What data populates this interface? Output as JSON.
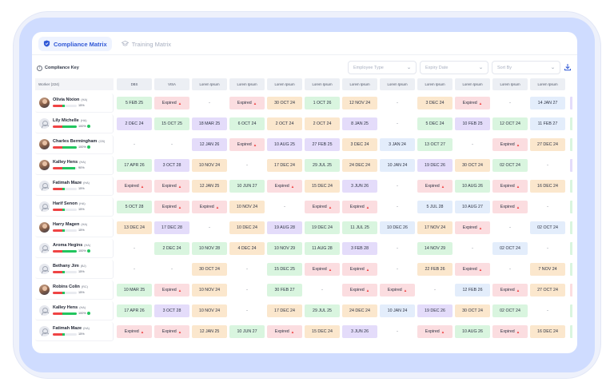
{
  "tabs": [
    {
      "label": "Compliance Matrix",
      "icon": "shield-icon",
      "active": true
    },
    {
      "label": "Training Matrix",
      "icon": "graduation-cap-icon",
      "active": false
    }
  ],
  "toolbar": {
    "compliance_key": "Compliance Key",
    "filters": [
      {
        "placeholder": "Employee Type"
      },
      {
        "placeholder": "Expiry Date"
      },
      {
        "placeholder": "Sort By"
      }
    ]
  },
  "grid": {
    "worker_header": "Worker (224)",
    "columns": [
      "DBS",
      "VISA",
      "Lorem Ipsum",
      "Lorem Ipsum",
      "Lorem Ipsum",
      "Lorem Ipsum",
      "Lorem Ipsum",
      "Lorem Ipsum",
      "Lorem Ipsum",
      "Lorem Ipsum",
      "Lorem Ipsum",
      "Lorem Ipsum"
    ],
    "rows": [
      {
        "name": "Olivia Nixion",
        "tag": "(HA)",
        "pct": "15%",
        "progress": 0.15,
        "avatar": "photo",
        "cells": [
          [
            "5 FEB 25",
            "green"
          ],
          [
            "Expired",
            "red"
          ],
          [
            "-",
            "none"
          ],
          [
            "Expired",
            "red"
          ],
          [
            "30 OCT 24",
            "orange"
          ],
          [
            "1 OCT 26",
            "green"
          ],
          [
            "12 NOV 24",
            "orange"
          ],
          [
            "-",
            "none"
          ],
          [
            "3 DEC 24",
            "orange"
          ],
          [
            "Expired",
            "red"
          ],
          [
            "-",
            "none"
          ],
          [
            "14 JAN 27",
            "blue"
          ]
        ],
        "edge": "purple"
      },
      {
        "name": "Lily Michelle",
        "tag": "(HA)",
        "pct": "100%",
        "progress": 1.0,
        "avatar": "placeholder",
        "cells": [
          [
            "2 DEC 24",
            "purple"
          ],
          [
            "15 OCT 25",
            "green"
          ],
          [
            "18 MAR 25",
            "purple"
          ],
          [
            "6 OCT 24",
            "green"
          ],
          [
            "2 OCT 24",
            "orange"
          ],
          [
            "2 OCT 24",
            "orange"
          ],
          [
            "8 JAN 25",
            "purple"
          ],
          [
            "-",
            "none"
          ],
          [
            "5 DEC 24",
            "green"
          ],
          [
            "10 FEB 25",
            "purple"
          ],
          [
            "12 OCT 24",
            "green"
          ],
          [
            "11 FEB 27",
            "blue"
          ]
        ],
        "edge": "green"
      },
      {
        "name": "Charles Bermingham",
        "tag": "(CB)",
        "pct": "100%",
        "progress": 1.0,
        "avatar": "photo",
        "cells": [
          [
            "-",
            "none"
          ],
          [
            "-",
            "none"
          ],
          [
            "12 JAN 26",
            "purple"
          ],
          [
            "Expired",
            "red"
          ],
          [
            "10 AUG 25",
            "purple"
          ],
          [
            "27 FEB 25",
            "purple"
          ],
          [
            "3 DEC 24",
            "orange"
          ],
          [
            "3 JAN 24",
            "blue"
          ],
          [
            "13 OCT 27",
            "green"
          ],
          [
            "-",
            "none"
          ],
          [
            "Expired",
            "red"
          ],
          [
            "27 DEC 24",
            "orange"
          ]
        ],
        "edge": "green"
      },
      {
        "name": "Kalley Hens",
        "tag": "(HA)",
        "pct": "90%",
        "progress": 0.9,
        "avatar": "photo",
        "cells": [
          [
            "17 APR 26",
            "green"
          ],
          [
            "3 OCT 28",
            "purple"
          ],
          [
            "10 NOV 24",
            "orange"
          ],
          [
            "-",
            "none"
          ],
          [
            "17 DEC 24",
            "orange"
          ],
          [
            "29 JUL 25",
            "green"
          ],
          [
            "24 DEC 24",
            "orange"
          ],
          [
            "10 JAN 24",
            "blue"
          ],
          [
            "19 DEC 26",
            "purple"
          ],
          [
            "30 OCT 24",
            "orange"
          ],
          [
            "02 OCT 24",
            "green"
          ],
          [
            "-",
            "none"
          ]
        ],
        "edge": "purple"
      },
      {
        "name": "Fatimah Maze",
        "tag": "(HA)",
        "pct": "15%",
        "progress": 0.15,
        "avatar": "placeholder",
        "cells": [
          [
            "Expired",
            "red"
          ],
          [
            "Expired",
            "red"
          ],
          [
            "12 JAN 25",
            "orange"
          ],
          [
            "10 JUN 27",
            "green"
          ],
          [
            "Expired",
            "red"
          ],
          [
            "15 DEC 24",
            "orange"
          ],
          [
            "3 JUN 26",
            "purple"
          ],
          [
            "-",
            "none"
          ],
          [
            "Expired",
            "red"
          ],
          [
            "10 AUG 26",
            "green"
          ],
          [
            "Expired",
            "red"
          ],
          [
            "16 DEC 24",
            "orange"
          ]
        ],
        "edge": "green"
      },
      {
        "name": "Harif Senon",
        "tag": "(HA)",
        "pct": "15%",
        "progress": 0.15,
        "avatar": "placeholder",
        "cells": [
          [
            "5 OCT 28",
            "green"
          ],
          [
            "Expired",
            "red"
          ],
          [
            "Expired",
            "red"
          ],
          [
            "10 NOV 24",
            "orange"
          ],
          [
            "-",
            "none"
          ],
          [
            "Expired",
            "red"
          ],
          [
            "Expired",
            "red"
          ],
          [
            "-",
            "none"
          ],
          [
            "5 JUL 28",
            "blue"
          ],
          [
            "10 AUG 27",
            "blue"
          ],
          [
            "Expired",
            "red"
          ],
          [
            "-",
            "none"
          ]
        ],
        "edge": "green"
      },
      {
        "name": "Harry Magen",
        "tag": "(HA)",
        "pct": "15%",
        "progress": 0.15,
        "avatar": "photo",
        "cells": [
          [
            "13 DEC 24",
            "orange"
          ],
          [
            "17 DEC 28",
            "purple"
          ],
          [
            "-",
            "none"
          ],
          [
            "10 DEC 24",
            "orange"
          ],
          [
            "19 AUG 28",
            "purple"
          ],
          [
            "19 DEC 24",
            "green"
          ],
          [
            "11 JUL 25",
            "green"
          ],
          [
            "10 DEC 26",
            "blue"
          ],
          [
            "17 NOV 24",
            "orange"
          ],
          [
            "Expired",
            "red"
          ],
          [
            "-",
            "none"
          ],
          [
            "02 OCT 24",
            "blue"
          ]
        ],
        "edge": "green"
      },
      {
        "name": "Aroma Hegins",
        "tag": "(HA)",
        "pct": "100%",
        "progress": 1.0,
        "avatar": "placeholder",
        "cells": [
          [
            "-",
            "none"
          ],
          [
            "2 DEC 24",
            "green"
          ],
          [
            "10 NOV 28",
            "green"
          ],
          [
            "4 DEC 24",
            "orange"
          ],
          [
            "10 NOV 29",
            "green"
          ],
          [
            "11 AUG 28",
            "green"
          ],
          [
            "3 FEB 28",
            "purple"
          ],
          [
            "-",
            "none"
          ],
          [
            "14 NOV 29",
            "green"
          ],
          [
            "-",
            "none"
          ],
          [
            "02 OCT 24",
            "blue"
          ],
          [
            "-",
            "none"
          ]
        ],
        "edge": "green"
      },
      {
        "name": "Bethany Jim",
        "tag": "(BJ)",
        "pct": "15%",
        "progress": 0.15,
        "avatar": "placeholder",
        "cells": [
          [
            "-",
            "none"
          ],
          [
            "-",
            "none"
          ],
          [
            "30 OCT 24",
            "orange"
          ],
          [
            "-",
            "none"
          ],
          [
            "15 DEC 25",
            "green"
          ],
          [
            "Expired",
            "red"
          ],
          [
            "Expired",
            "red"
          ],
          [
            "-",
            "none"
          ],
          [
            "22 FEB 26",
            "orange"
          ],
          [
            "Expired",
            "red"
          ],
          [
            "-",
            "none"
          ],
          [
            "7 NOV 24",
            "orange"
          ]
        ],
        "edge": "green"
      },
      {
        "name": "Robins Colin",
        "tag": "(RC)",
        "pct": "15%",
        "progress": 0.15,
        "avatar": "photo",
        "cells": [
          [
            "10 MAR 25",
            "green"
          ],
          [
            "Expired",
            "red"
          ],
          [
            "10 NOV 24",
            "orange"
          ],
          [
            "-",
            "none"
          ],
          [
            "30 FEB 27",
            "green"
          ],
          [
            "-",
            "none"
          ],
          [
            "Expired",
            "red"
          ],
          [
            "Expired",
            "red"
          ],
          [
            "-",
            "none"
          ],
          [
            "12 FEB 26",
            "blue"
          ],
          [
            "Expired",
            "red"
          ],
          [
            "27 OCT 24",
            "orange"
          ]
        ],
        "edge": "red"
      },
      {
        "name": "Kalley Hens",
        "tag": "(HA)",
        "pct": "100%",
        "progress": 1.0,
        "avatar": "placeholder",
        "cells": [
          [
            "17 APR 26",
            "green"
          ],
          [
            "3 OCT 28",
            "purple"
          ],
          [
            "10 NOV 24",
            "orange"
          ],
          [
            "-",
            "none"
          ],
          [
            "17 DEC 24",
            "orange"
          ],
          [
            "29 JUL 25",
            "green"
          ],
          [
            "24 DEC 24",
            "orange"
          ],
          [
            "10 JAN 24",
            "blue"
          ],
          [
            "19 DEC 26",
            "purple"
          ],
          [
            "30 OCT 24",
            "orange"
          ],
          [
            "02 OCT 24",
            "green"
          ],
          [
            "-",
            "none"
          ]
        ],
        "edge": "green"
      },
      {
        "name": "Fatimah Maze",
        "tag": "(HA)",
        "pct": "15%",
        "progress": 0.15,
        "avatar": "placeholder",
        "cells": [
          [
            "Expired",
            "red"
          ],
          [
            "Expired",
            "red"
          ],
          [
            "12 JAN 25",
            "orange"
          ],
          [
            "10 JUN 27",
            "green"
          ],
          [
            "Expired",
            "red"
          ],
          [
            "15 DEC 24",
            "orange"
          ],
          [
            "3 JUN 26",
            "purple"
          ],
          [
            "-",
            "none"
          ],
          [
            "Expired",
            "red"
          ],
          [
            "10 AUG 26",
            "green"
          ],
          [
            "Expired",
            "red"
          ],
          [
            "16 DEC 24",
            "orange"
          ]
        ],
        "edge": "green"
      }
    ]
  },
  "colors": {
    "accent": "#3159d6",
    "green": "#d9f5df",
    "red": "#fbdde0",
    "purple": "#e4dcfa",
    "orange": "#fbe7cd",
    "blue": "#e3edfb",
    "frame": "#cfdcff"
  }
}
